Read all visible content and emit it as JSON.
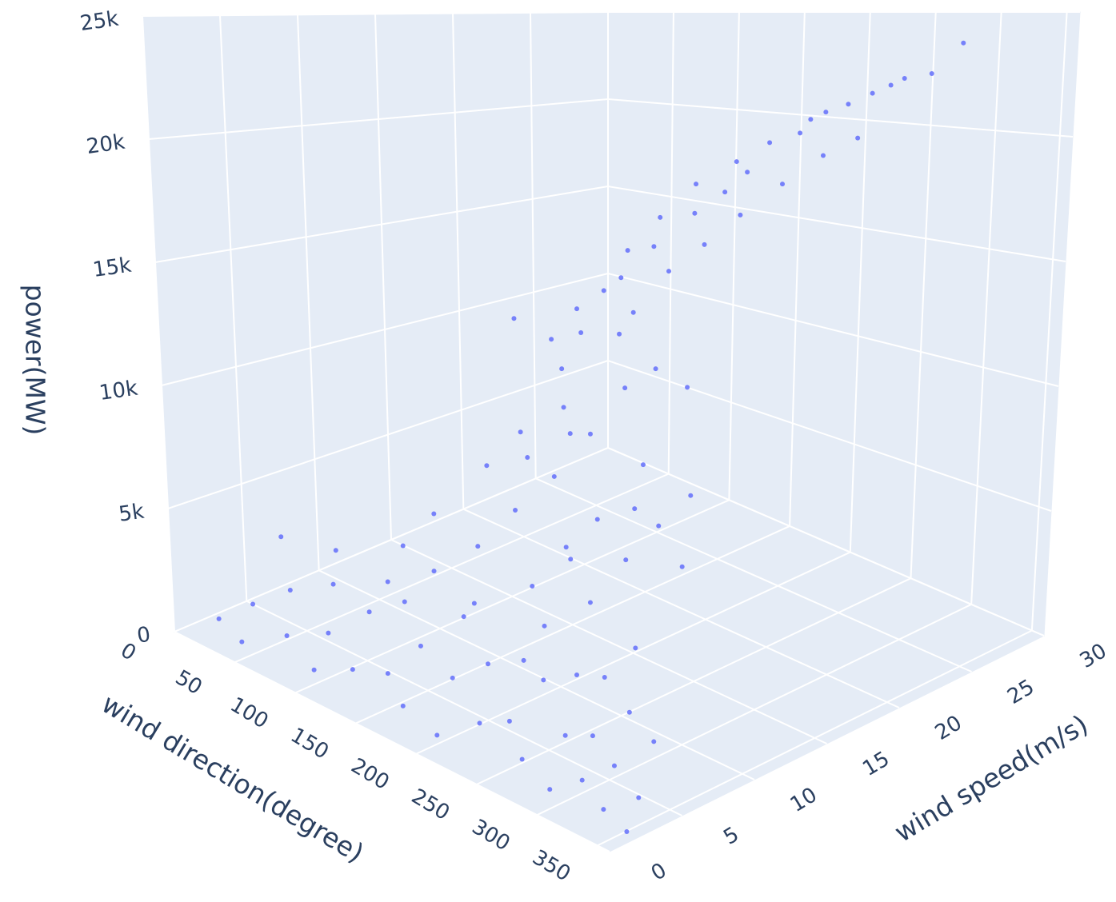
{
  "chart_data": {
    "type": "scatter3d",
    "xlabel": "wind direction(degree)",
    "ylabel": "wind speed(m/s)",
    "zlabel": "power(MW)",
    "xlim": [
      0,
      360
    ],
    "ylim": [
      0,
      30
    ],
    "zlim": [
      0,
      25000
    ],
    "xticks": [
      0,
      50,
      100,
      150,
      200,
      250,
      300,
      350
    ],
    "yticks": [
      0,
      5,
      10,
      15,
      20,
      25,
      30
    ],
    "zticks": [
      0,
      {
        "value": 5000,
        "label": "5k"
      },
      {
        "value": 10000,
        "label": "10k"
      },
      {
        "value": 15000,
        "label": "15k"
      },
      {
        "value": 20000,
        "label": "20k"
      },
      {
        "value": 25000,
        "label": "25k"
      }
    ],
    "grid": true,
    "color": "#636efa",
    "x": [
      12,
      25,
      38,
      47,
      60,
      72,
      85,
      93,
      105,
      118,
      126,
      140,
      152,
      163,
      171,
      184,
      197,
      205,
      218,
      226,
      238,
      247,
      259,
      266,
      278,
      289,
      297,
      305,
      314,
      322,
      331,
      340,
      348,
      355,
      20,
      64,
      110,
      175,
      230,
      290,
      105,
      120,
      135,
      148,
      158,
      166,
      178,
      190,
      199,
      207,
      215,
      224,
      233,
      241,
      252,
      261,
      270,
      279,
      288,
      296,
      304,
      312,
      140,
      185,
      220,
      255,
      175,
      200,
      230,
      265,
      160,
      172,
      185,
      193,
      204,
      212,
      221,
      229,
      238,
      246,
      255,
      263,
      272,
      281,
      290,
      299,
      308,
      317,
      326,
      335,
      180,
      210,
      240,
      270,
      300,
      195,
      225,
      250,
      280,
      310
    ],
    "y": [
      2.1,
      3.4,
      1.5,
      4.2,
      2.8,
      5.1,
      3.6,
      1.9,
      4.8,
      2.5,
      5.5,
      3.1,
      4.4,
      2.2,
      5.8,
      3.9,
      1.7,
      4.6,
      2.9,
      5.3,
      3.3,
      4.9,
      2.4,
      5.6,
      3.8,
      1.8,
      4.1,
      2.7,
      5.2,
      3.5,
      2.0,
      4.7,
      3.0,
      1.6,
      5.9,
      6.0,
      5.7,
      6.2,
      6.4,
      5.5,
      7.2,
      8.1,
      6.8,
      9.4,
      7.9,
      10.2,
      8.8,
      11.1,
      9.7,
      7.5,
      10.8,
      8.4,
      11.6,
      9.1,
      7.7,
      10.5,
      8.6,
      11.9,
      9.3,
      7.1,
      10.1,
      8.9,
      12.0,
      11.4,
      12.3,
      11.8,
      9.9,
      10.7,
      8.2,
      9.6,
      12.8,
      13.5,
      14.2,
      15.1,
      16.3,
      13.9,
      17.2,
      14.8,
      18.4,
      15.7,
      19.1,
      16.6,
      20.3,
      17.8,
      21.2,
      18.9,
      22.4,
      19.6,
      23.5,
      24.7,
      13.1,
      15.4,
      17.5,
      19.8,
      21.9,
      14.5,
      16.8,
      18.1,
      20.6,
      23.1
    ],
    "z": [
      300,
      900,
      150,
      1800,
      600,
      2400,
      1100,
      250,
      2100,
      700,
      2800,
      900,
      1900,
      400,
      3100,
      1500,
      200,
      2300,
      800,
      2700,
      1200,
      2500,
      500,
      2900,
      1400,
      220,
      1700,
      650,
      2600,
      1300,
      350,
      2200,
      850,
      180,
      3000,
      3400,
      3200,
      3600,
      3800,
      3300,
      4200,
      5600,
      3900,
      7800,
      5100,
      9300,
      6700,
      10500,
      8200,
      4600,
      9900,
      6200,
      11800,
      7400,
      4800,
      9500,
      6500,
      12400,
      7900,
      4100,
      9100,
      6900,
      13200,
      11900,
      13600,
      12800,
      8500,
      9700,
      5900,
      8100,
      12500,
      13800,
      14600,
      16200,
      17500,
      14100,
      18900,
      15800,
      19800,
      16900,
      20600,
      18100,
      21500,
      19300,
      22100,
      20400,
      22800,
      21100,
      23200,
      24300,
      13000,
      16500,
      18700,
      21000,
      22500,
      15200,
      17800,
      19500,
      21800,
      23000
    ]
  }
}
